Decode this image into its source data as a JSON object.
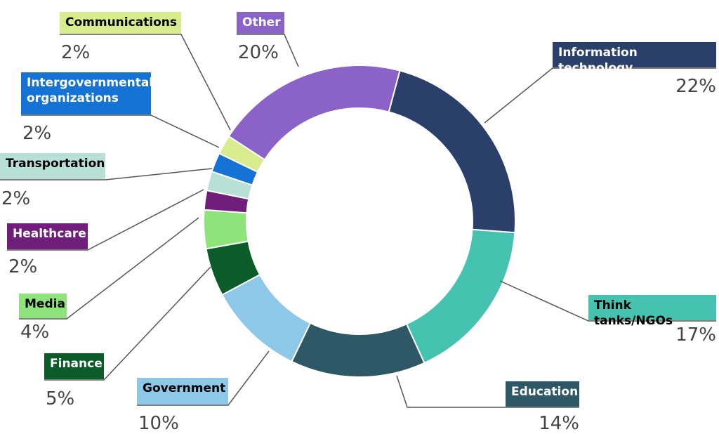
{
  "chart_data": {
    "type": "donut",
    "categories": [
      "Information technology",
      "Think tanks/NGOs",
      "Education",
      "Government",
      "Finance",
      "Media",
      "Healthcare",
      "Transportation",
      "Intergovernmental organizations",
      "Communications",
      "Other"
    ],
    "values": [
      22,
      17,
      14,
      10,
      5,
      4,
      2,
      2,
      2,
      2,
      20
    ],
    "value_labels": [
      "22%",
      "17%",
      "14%",
      "10%",
      "5%",
      "4%",
      "2%",
      "2%",
      "2%",
      "2%",
      "20%"
    ],
    "colors": [
      "#2b3f6b",
      "#46c3b0",
      "#2e5866",
      "#8ec8e8",
      "#0c5c2a",
      "#8ee37a",
      "#6f1f7a",
      "#b8e0d6",
      "#1673d6",
      "#d8ec8e",
      "#8a62c8"
    ]
  }
}
